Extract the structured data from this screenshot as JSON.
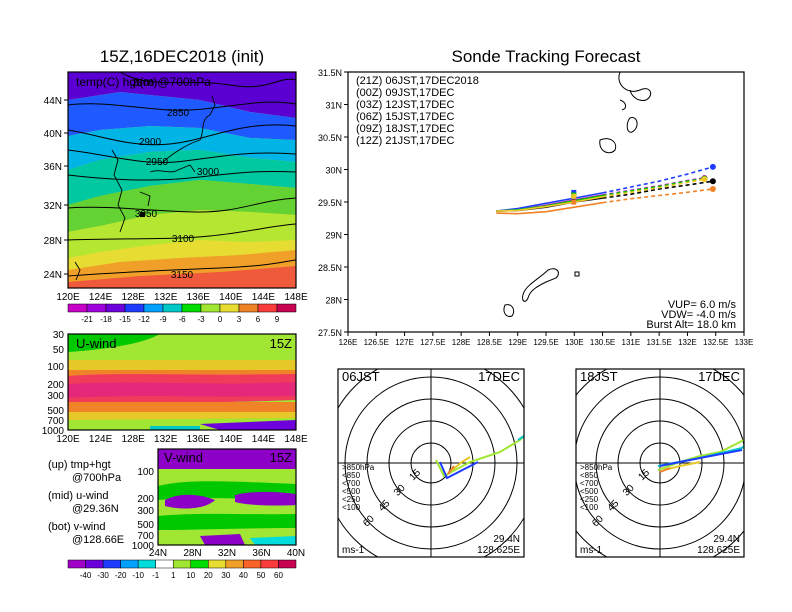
{
  "left_title": "15Z,16DEC2018 (init)",
  "right_title": "Sonde Tracking Forecast",
  "map700": {
    "label": "temp(C) hgt(m)@700hPa",
    "lon_ticks": [
      "120E",
      "124E",
      "128E",
      "132E",
      "136E",
      "140E",
      "144E",
      "148E"
    ],
    "lat_ticks": [
      "44N",
      "40N",
      "36N",
      "32N",
      "28N",
      "24N"
    ],
    "contour_labels": [
      "2800",
      "2850",
      "2900",
      "2950",
      "3000",
      "3050",
      "3100",
      "3150"
    ],
    "colorbar_labels": [
      "-21",
      "-18",
      "-15",
      "-12",
      "-9",
      "-6",
      "-3",
      "0",
      "3",
      "6",
      "9"
    ],
    "colorbar_colors": [
      "#c800c8",
      "#a000dc",
      "#6e00dc",
      "#1e3cff",
      "#00a0ff",
      "#00c8c8",
      "#00dc00",
      "#a0e632",
      "#e6dc32",
      "#f08228",
      "#fa3c3c",
      "#c80050"
    ]
  },
  "uwind": {
    "label": "U-wind",
    "time": "15Z",
    "p_ticks": [
      "30",
      "50",
      "100",
      "200",
      "300",
      "500",
      "700",
      "1000"
    ],
    "lon_ticks": [
      "120E",
      "124E",
      "128E",
      "132E",
      "136E",
      "140E",
      "144E",
      "148E"
    ]
  },
  "vwind": {
    "label": "V-wind",
    "time": "15Z",
    "p_ticks": [
      "100",
      "200",
      "300",
      "500",
      "700",
      "1000"
    ],
    "lat_ticks": [
      "24N",
      "28N",
      "32N",
      "36N",
      "40N"
    ],
    "colorbar_labels": [
      "-40",
      "-30",
      "-20",
      "-10",
      "-1",
      "1",
      "10",
      "20",
      "30",
      "40",
      "50",
      "60"
    ],
    "colorbar_colors": [
      "#a000c8",
      "#6e00dc",
      "#1e3cff",
      "#00a0ff",
      "#00dcdc",
      "#ffffff",
      "#a0e632",
      "#00dc00",
      "#e6dc32",
      "#f0a028",
      "#fa6428",
      "#fa3c3c",
      "#c80050"
    ]
  },
  "legend_notes": [
    {
      "a": "(up) tmp+hgt",
      "b": "@700hPa"
    },
    {
      "a": "(mid) u-wind",
      "b": "@29.36N"
    },
    {
      "a": "(bot) v-wind",
      "b": "@128.66E"
    }
  ],
  "track": {
    "launches": [
      {
        "label": "(21Z) 06JST,17DEC2018",
        "color": "#000000"
      },
      {
        "label": "(00Z) 09JST,17DEC",
        "color": "#c800c8"
      },
      {
        "label": "(03Z) 12JST,17DEC",
        "color": "#1e3cff"
      },
      {
        "label": "(06Z) 15JST,17DEC",
        "color": "#00c800"
      },
      {
        "label": "(09Z) 18JST,17DEC",
        "color": "#f0c828"
      },
      {
        "label": "(12Z) 21JST,17DEC",
        "color": "#f08228"
      }
    ],
    "lon_ticks": [
      "126E",
      "126.5E",
      "127E",
      "127.5E",
      "128E",
      "128.5E",
      "129E",
      "129.5E",
      "130E",
      "130.5E",
      "131E",
      "131.5E",
      "132E",
      "132.5E",
      "133E"
    ],
    "lat_ticks": [
      "31.5N",
      "31N",
      "30.5N",
      "30N",
      "29.5N",
      "29N",
      "28.5N",
      "28N",
      "27.5N"
    ],
    "info": [
      "VUP= 6.0 m/s",
      "VDW= -4.0 m/s",
      "Burst Alt= 18.0 km"
    ]
  },
  "hodo_left": {
    "time": "06JST",
    "date": "17DEC",
    "unit": "ms-1",
    "lat": "29.4N",
    "lon": "128.625E",
    "ring_labels": [
      "15",
      "30",
      "45",
      "60"
    ],
    "levels": [
      ">850hPa",
      "<850",
      "<700",
      "<500",
      "<250",
      "<100"
    ]
  },
  "hodo_right": {
    "time": "18JST",
    "date": "17DEC",
    "unit": "ms-1",
    "lat": "29.4N",
    "lon": "128.625E",
    "ring_labels": [
      "15",
      "30",
      "45",
      "60"
    ],
    "levels": [
      ">850hPa",
      "<850",
      "<700",
      "<500",
      "<250",
      "<100"
    ]
  },
  "level_colors": [
    "#fa3c3c",
    "#f08228",
    "#e6c828",
    "#a0e632",
    "#00c8c8",
    "#1e3cff"
  ],
  "chart_data": [
    {
      "type": "line",
      "title": "Sonde Tracking Forecast",
      "xlabel": "",
      "ylabel": "",
      "xlim": [
        126,
        133
      ],
      "ylim": [
        27.5,
        31.5
      ],
      "series": [
        {
          "name": "(21Z) 06JST,17DEC2018",
          "x": [
            128.62,
            129.0,
            129.5,
            130.0,
            130.5,
            131.0,
            131.5,
            132.0,
            132.45
          ],
          "y": [
            29.36,
            29.37,
            29.42,
            29.5,
            29.56,
            29.62,
            29.7,
            29.76,
            29.82
          ]
        },
        {
          "name": "(00Z) 09JST,17DEC",
          "x": [
            128.62,
            129.0,
            129.5,
            130.0,
            130.5,
            131.0,
            131.5,
            132.0,
            132.3
          ],
          "y": [
            29.36,
            29.38,
            29.45,
            29.53,
            29.61,
            29.68,
            29.75,
            29.83,
            29.87
          ]
        },
        {
          "name": "(03Z) 12JST,17DEC",
          "x": [
            128.62,
            129.0,
            129.5,
            130.0,
            130.5,
            131.0,
            131.5,
            132.0,
            132.45
          ],
          "y": [
            29.36,
            29.4,
            29.48,
            29.56,
            29.64,
            29.73,
            29.82,
            29.93,
            30.04
          ]
        },
        {
          "name": "(06Z) 15JST,17DEC",
          "x": [
            128.62,
            129.0,
            129.5,
            130.0,
            130.5,
            131.0,
            131.5,
            132.0,
            132.3
          ],
          "y": [
            29.36,
            29.38,
            29.44,
            29.52,
            29.6,
            29.67,
            29.74,
            29.82,
            29.86
          ]
        },
        {
          "name": "(09Z) 18JST,17DEC",
          "x": [
            128.62,
            129.0,
            129.5,
            130.0,
            130.5,
            131.0,
            131.5,
            132.0,
            132.3
          ],
          "y": [
            29.36,
            29.37,
            29.43,
            29.5,
            29.58,
            29.65,
            29.72,
            29.8,
            29.85
          ]
        },
        {
          "name": "(12Z) 21JST,17DEC",
          "x": [
            128.62,
            129.0,
            129.5,
            130.0,
            130.5,
            131.0,
            131.5,
            132.0,
            132.45
          ],
          "y": [
            29.33,
            29.32,
            29.35,
            29.42,
            29.49,
            29.55,
            29.6,
            29.65,
            29.7
          ]
        }
      ]
    }
  ]
}
